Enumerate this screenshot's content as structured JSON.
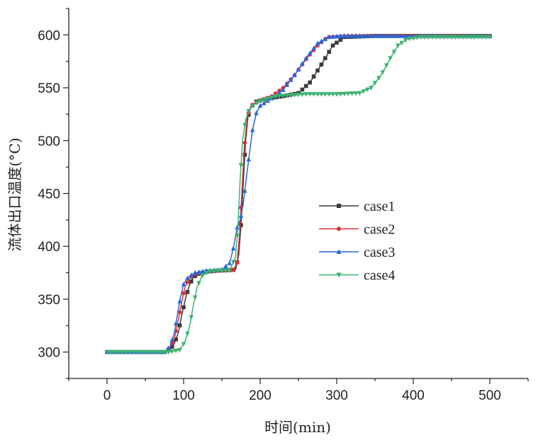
{
  "chart_data": {
    "type": "line",
    "title": "",
    "xlabel": "时间(min)",
    "ylabel": "流体出口温度(°C)",
    "xlim": [
      -50,
      550
    ],
    "ylim": [
      275,
      625
    ],
    "xticks": [
      0,
      100,
      200,
      300,
      400,
      500
    ],
    "yticks": [
      300,
      350,
      400,
      450,
      500,
      550,
      600
    ],
    "grid": false,
    "legend_position": "center-right",
    "series": [
      {
        "name": "case1",
        "color": "#3b3b3b",
        "marker": "square",
        "points": [
          [
            0,
            300
          ],
          [
            20,
            300
          ],
          [
            40,
            300
          ],
          [
            60,
            300
          ],
          [
            75,
            300
          ],
          [
            82,
            302
          ],
          [
            88,
            308
          ],
          [
            93,
            318
          ],
          [
            98,
            336
          ],
          [
            103,
            352
          ],
          [
            108,
            364
          ],
          [
            113,
            371
          ],
          [
            120,
            374
          ],
          [
            130,
            376
          ],
          [
            145,
            377
          ],
          [
            160,
            377.5
          ],
          [
            168,
            378
          ],
          [
            172,
            392
          ],
          [
            175,
            420
          ],
          [
            178,
            460
          ],
          [
            181,
            500
          ],
          [
            184,
            522
          ],
          [
            188,
            532
          ],
          [
            195,
            537
          ],
          [
            210,
            540
          ],
          [
            230,
            542
          ],
          [
            250,
            545
          ],
          [
            265,
            555
          ],
          [
            280,
            572
          ],
          [
            295,
            590
          ],
          [
            310,
            598
          ],
          [
            350,
            599
          ],
          [
            400,
            599
          ],
          [
            500,
            599
          ]
        ]
      },
      {
        "name": "case2",
        "color": "#e0303a",
        "marker": "circle",
        "points": [
          [
            0,
            300
          ],
          [
            20,
            300
          ],
          [
            40,
            300
          ],
          [
            60,
            300
          ],
          [
            75,
            300
          ],
          [
            82,
            304
          ],
          [
            88,
            313
          ],
          [
            93,
            330
          ],
          [
            98,
            349
          ],
          [
            102,
            362
          ],
          [
            108,
            370
          ],
          [
            115,
            374
          ],
          [
            130,
            376
          ],
          [
            150,
            377
          ],
          [
            165,
            377.5
          ],
          [
            170,
            385
          ],
          [
            173,
            410
          ],
          [
            176,
            450
          ],
          [
            179,
            490
          ],
          [
            183,
            522
          ],
          [
            188,
            533
          ],
          [
            200,
            538
          ],
          [
            215,
            542
          ],
          [
            230,
            550
          ],
          [
            245,
            562
          ],
          [
            260,
            577
          ],
          [
            275,
            590
          ],
          [
            288,
            598
          ],
          [
            310,
            599
          ],
          [
            400,
            599
          ],
          [
            500,
            599
          ]
        ]
      },
      {
        "name": "case3",
        "color": "#2868d8",
        "marker": "triangle-up",
        "points": [
          [
            0,
            300
          ],
          [
            20,
            300
          ],
          [
            40,
            300
          ],
          [
            60,
            300
          ],
          [
            75,
            300
          ],
          [
            82,
            305
          ],
          [
            88,
            318
          ],
          [
            92,
            336
          ],
          [
            96,
            352
          ],
          [
            100,
            364
          ],
          [
            106,
            371
          ],
          [
            115,
            375
          ],
          [
            130,
            377
          ],
          [
            150,
            378
          ],
          [
            160,
            384
          ],
          [
            165,
            398
          ],
          [
            170,
            418
          ],
          [
            174,
            425
          ],
          [
            178,
            440
          ],
          [
            182,
            465
          ],
          [
            186,
            488
          ],
          [
            190,
            510
          ],
          [
            195,
            526
          ],
          [
            200,
            533
          ],
          [
            215,
            540
          ],
          [
            230,
            548
          ],
          [
            245,
            562
          ],
          [
            260,
            578
          ],
          [
            275,
            592
          ],
          [
            290,
            598
          ],
          [
            310,
            599
          ],
          [
            400,
            599
          ],
          [
            500,
            599
          ]
        ]
      },
      {
        "name": "case4",
        "color": "#3cb371",
        "marker": "triangle-down",
        "points": [
          [
            0,
            300
          ],
          [
            20,
            300
          ],
          [
            40,
            300
          ],
          [
            60,
            300
          ],
          [
            80,
            300
          ],
          [
            95,
            302
          ],
          [
            102,
            310
          ],
          [
            108,
            325
          ],
          [
            113,
            345
          ],
          [
            118,
            362
          ],
          [
            124,
            372
          ],
          [
            132,
            376
          ],
          [
            145,
            377
          ],
          [
            160,
            377
          ],
          [
            168,
            390
          ],
          [
            171,
            420
          ],
          [
            174,
            465
          ],
          [
            177,
            500
          ],
          [
            181,
            520
          ],
          [
            186,
            530
          ],
          [
            195,
            536
          ],
          [
            220,
            542
          ],
          [
            260,
            544
          ],
          [
            300,
            544
          ],
          [
            330,
            545
          ],
          [
            345,
            550
          ],
          [
            358,
            562
          ],
          [
            370,
            578
          ],
          [
            380,
            590
          ],
          [
            392,
            596
          ],
          [
            410,
            598
          ],
          [
            450,
            598
          ],
          [
            500,
            598
          ]
        ]
      }
    ]
  }
}
